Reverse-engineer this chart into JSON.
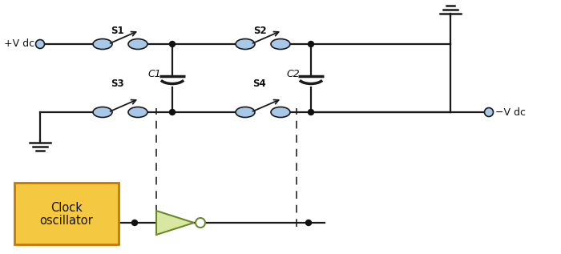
{
  "bg_color": "#ffffff",
  "line_color": "#1a1a1a",
  "switch_color": "#a8c8e8",
  "dot_color": "#111111",
  "box_fill": "#f5c842",
  "box_edge": "#c87800",
  "dashed_color": "#444444",
  "triangle_fill": "#d8e8a0",
  "triangle_edge": "#6a8830",
  "label_color": "#111111",
  "pos_label": "+V dc",
  "neg_label": "−V dc",
  "osc_label_1": "Clock",
  "osc_label_2": "oscillator"
}
